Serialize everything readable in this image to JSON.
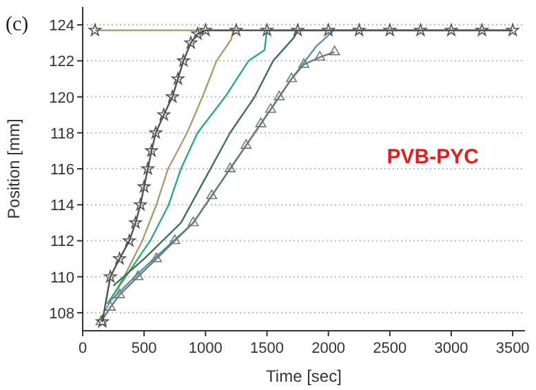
{
  "chart_data": {
    "type": "line",
    "xlabel": "Time [sec]",
    "ylabel": "Position [mm]",
    "xlim": [
      0,
      3600
    ],
    "ylim": [
      107,
      125
    ],
    "xticks": [
      0,
      500,
      1000,
      1500,
      2000,
      2500,
      3000,
      3500
    ],
    "yticks": [
      108,
      110,
      112,
      114,
      116,
      118,
      120,
      122,
      124
    ],
    "grid": "y",
    "annotations": [
      "(c)",
      "PVB-PYC"
    ],
    "series": [
      {
        "color": "#b09a6a",
        "marker": "none",
        "x": [
          100,
          1225,
          1210,
          1090,
          975,
          850,
          695,
          600,
          485,
          337,
          250
        ],
        "values": [
          123.7,
          123.7,
          123.2,
          122,
          120,
          118,
          116,
          114,
          112,
          110,
          109
        ]
      },
      {
        "color": "#2aa876",
        "marker": "none",
        "x": [
          200,
          350,
          550,
          700,
          800,
          935,
          1160,
          1350,
          1480,
          1500,
          3500
        ],
        "values": [
          108.5,
          110,
          112,
          114,
          116,
          118,
          120,
          122,
          122.6,
          123.7,
          123.7
        ]
      },
      {
        "color": "#3d6e5e",
        "marker": "none",
        "x": [
          250,
          500,
          800,
          1000,
          1200,
          1400,
          1550,
          1720,
          1750
        ],
        "values": [
          109.5,
          111,
          113,
          115.5,
          118,
          120,
          122,
          123.3,
          123.7
        ]
      },
      {
        "color": "#5a8fb0",
        "marker": "none",
        "x": [
          200,
          500,
          900,
          1200,
          1500,
          1700,
          1900,
          2045
        ],
        "values": [
          108.5,
          110.5,
          113,
          116,
          119,
          121,
          122.8,
          123.7
        ]
      },
      {
        "color": "#6b7b78",
        "marker": "triangle",
        "x": [
          150,
          225,
          300,
          450,
          600,
          750,
          900,
          1050,
          1200,
          1330,
          1450,
          1530,
          1600,
          1700,
          1800,
          1930,
          2050
        ],
        "values": [
          107.5,
          108.3,
          109,
          110,
          111,
          112,
          113,
          114.5,
          116,
          117.3,
          118.5,
          119.3,
          120,
          121,
          121.8,
          122.2,
          122.5
        ]
      },
      {
        "type": "scatter",
        "color": "#505050",
        "marker": "star",
        "x": [
          100
        ],
        "values": [
          123.7
        ]
      },
      {
        "color": "#505050",
        "marker": "star",
        "x": [
          160,
          225,
          300,
          380,
          430,
          470,
          500,
          530,
          560,
          595,
          660,
          730,
          775,
          820,
          880,
          935,
          1000,
          1250,
          1500,
          1750,
          2000,
          2250,
          2500,
          2750,
          3000,
          3250,
          3500
        ],
        "values": [
          107.5,
          110,
          111,
          112,
          113,
          114,
          115,
          116,
          117,
          118,
          119,
          120,
          121,
          122,
          123,
          123.5,
          123.7,
          123.7,
          123.7,
          123.7,
          123.7,
          123.7,
          123.7,
          123.7,
          123.7,
          123.7,
          123.7
        ]
      }
    ]
  }
}
